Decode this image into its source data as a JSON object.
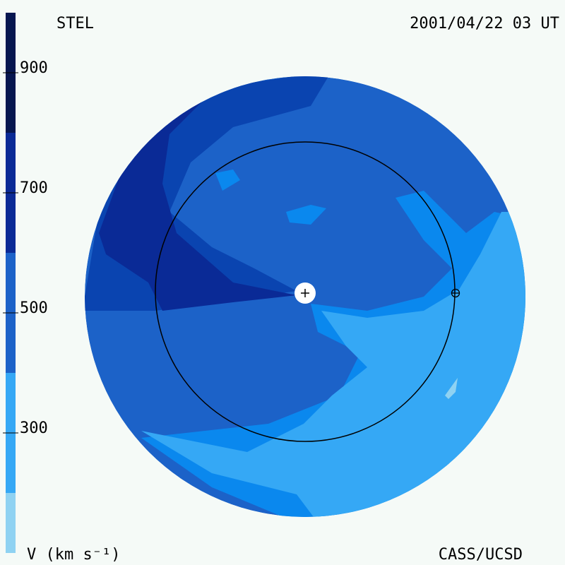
{
  "header": {
    "title": "STEL",
    "date": "2001/04/22 03 UT"
  },
  "colorbar": {
    "label": "V (km s⁻¹)",
    "lim": [
      100,
      1000
    ],
    "ticks": [
      300,
      500,
      700,
      900
    ],
    "bounds": [
      100,
      200,
      400,
      600,
      800,
      1000
    ],
    "colors": [
      "#8fd2f2",
      "#35a8f5",
      "#1c62c8",
      "#0a2a96",
      "#061650"
    ]
  },
  "footer": {
    "credit": "CASS/UCSD"
  }
}
